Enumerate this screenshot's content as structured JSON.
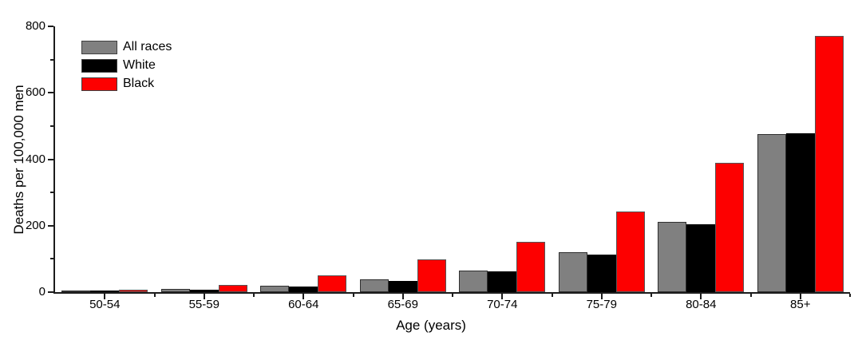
{
  "chart_data": {
    "type": "bar",
    "title": "",
    "xlabel": "Age (years)",
    "ylabel": "Deaths per 100,000 men",
    "ylim": [
      0,
      800
    ],
    "y_major_ticks": [
      0,
      200,
      400,
      600,
      800
    ],
    "y_minor_ticks": [
      100,
      300,
      500,
      700
    ],
    "grid": false,
    "legend_position": "top-left",
    "categories": [
      "50-54",
      "55-59",
      "60-64",
      "65-69",
      "70-74",
      "75-79",
      "80-84",
      "85+"
    ],
    "series": [
      {
        "name": "All races",
        "color": "#808080",
        "border": "#303030",
        "values": [
          2.5,
          9,
          20,
          39,
          66,
          119,
          211,
          476
        ]
      },
      {
        "name": "White",
        "color": "#000000",
        "border": "#000000",
        "values": [
          2,
          7,
          16,
          34,
          62,
          112,
          204,
          477
        ]
      },
      {
        "name": "Black",
        "color": "#fd0000",
        "border": "#555555",
        "values": [
          7,
          21,
          50,
          98,
          151,
          243,
          390,
          771
        ]
      }
    ]
  }
}
